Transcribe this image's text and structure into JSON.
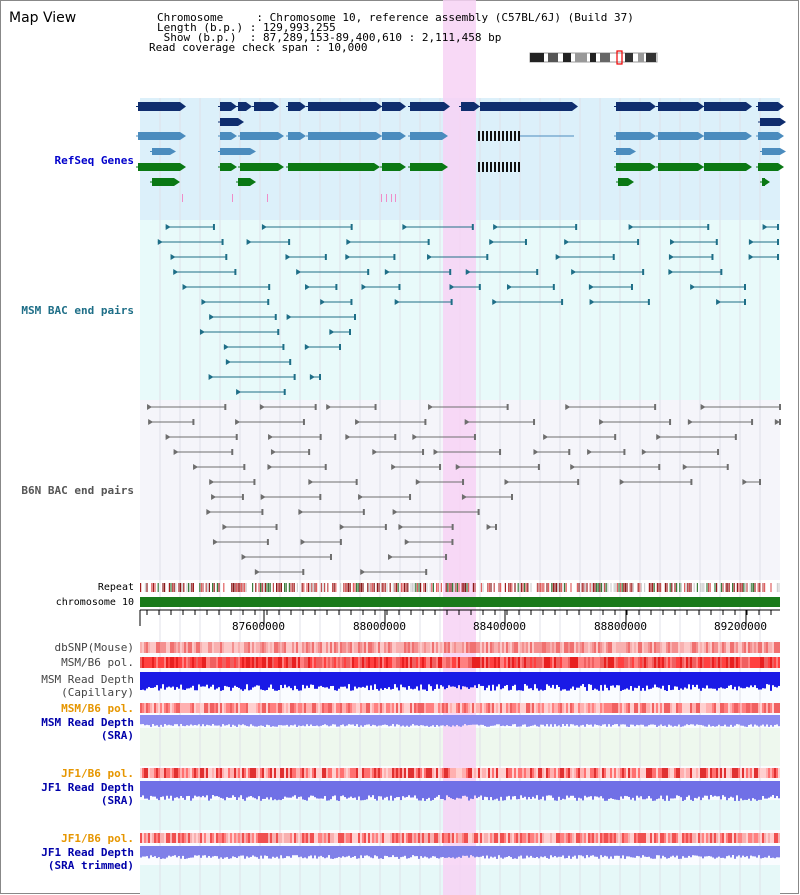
{
  "header": {
    "title": "Map View",
    "chromosome_label": "Chromosome     : Chromosome 10, reference assembly (C57BL/6J) (Build 37)",
    "length_label": "Length (b.p.) : 129,993,255",
    "show_label": " Show (b.p.)  : 87,289,153-89,400,610 : 2,111,458 bp",
    "coverage_label": "Read coverage check span : 10,000"
  },
  "tracks": {
    "refseq": "RefSeq Genes",
    "msm_bac": "MSM BAC end pairs",
    "b6n_bac": "B6N BAC end pairs",
    "repeat": "Repeat",
    "chromosome": "chromosome 10",
    "dbsnp": "dbSNP(Mouse)",
    "msm_b6_pol": "MSM/B6 pol.",
    "msm_depth_cap_1": "MSM Read Depth",
    "msm_depth_cap_2": "(Capillary)",
    "msm_b6_pol_2": "MSM/B6 pol.",
    "msm_depth_sra_1": "MSM Read Depth",
    "msm_depth_sra_2": "(SRA)",
    "jf1_pol": "JF1/B6 pol.",
    "jf1_depth_1": "JF1 Read Depth",
    "jf1_depth_2": "(SRA)",
    "jf1_pol_2": "JF1/B6 pol.",
    "jf1_trim_1": "JF1 Read Depth",
    "jf1_trim_2": "(SRA trimmed)"
  },
  "axis": {
    "ticks": [
      "87600000",
      "88000000",
      "88400000",
      "88800000",
      "89200000"
    ]
  },
  "colors": {
    "refseq_bg": "#dcf0fa",
    "msm_bg": "#e8fafa",
    "b6n_bg": "#f5f5fa",
    "highlight": "#f7d2f5",
    "navy": "#0f2d6e",
    "steel": "#4b8cbe",
    "green": "#0a7814",
    "teal": "#1e6e87",
    "gray": "#6e6e6e",
    "refseq_label": "#0000cc",
    "msm_label": "#1e6e87",
    "b6n_label": "#555555",
    "orange_label": "#e69600",
    "blue_label": "#0000aa"
  }
}
